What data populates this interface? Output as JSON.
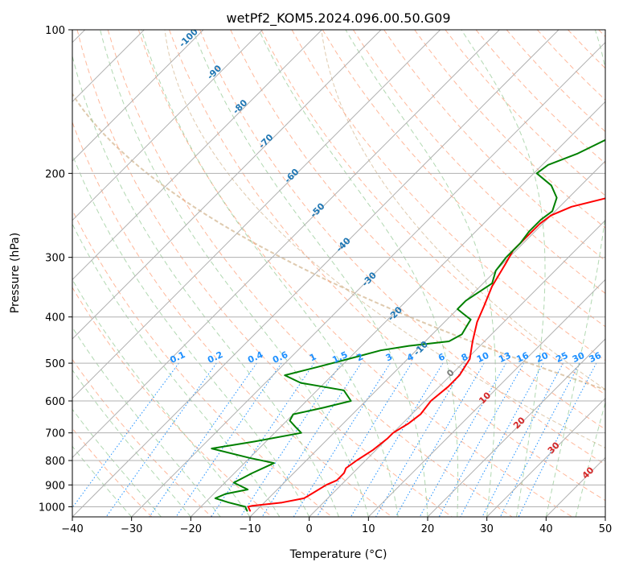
{
  "chart_data": {
    "type": "line",
    "title": "wetPf2_KOM5.2024.096.00.50.G09",
    "xlabel": "Temperature (°C)",
    "ylabel": "Pressure (hPa)",
    "xlim": [
      -40,
      50
    ],
    "ylim": [
      1050,
      100
    ],
    "y_scale": "log",
    "grid": true,
    "x_ticks": [
      -40,
      -30,
      -20,
      -10,
      0,
      10,
      20,
      30,
      40,
      50
    ],
    "y_ticks": [
      100,
      200,
      300,
      400,
      500,
      600,
      700,
      800,
      900,
      1000
    ],
    "series": [
      {
        "color": "#ff0000",
        "points": [
          [
            -11,
            1020
          ],
          [
            -12,
            1000
          ],
          [
            -11.5,
            995
          ],
          [
            -7,
            980
          ],
          [
            -4,
            960
          ],
          [
            -3.5,
            940
          ],
          [
            -2.5,
            900
          ],
          [
            -1.5,
            880
          ],
          [
            -1.5,
            850
          ],
          [
            -2,
            830
          ],
          [
            -1.5,
            800
          ],
          [
            -0.5,
            760
          ],
          [
            0,
            720
          ],
          [
            0,
            700
          ],
          [
            1,
            670
          ],
          [
            1.5,
            640
          ],
          [
            1,
            600
          ],
          [
            1.5,
            560
          ],
          [
            1.5,
            530
          ],
          [
            0.5,
            490
          ],
          [
            -2,
            450
          ],
          [
            -4.5,
            410
          ],
          [
            -6,
            380
          ],
          [
            -8,
            345
          ],
          [
            -9.5,
            310
          ],
          [
            -10.5,
            290
          ],
          [
            -10.5,
            270
          ],
          [
            -10.5,
            255
          ],
          [
            -10,
            245
          ],
          [
            -8,
            235
          ],
          [
            -2,
            222
          ],
          [
            5,
            212
          ],
          [
            10.5,
            203
          ],
          [
            13.5,
            195
          ],
          [
            15.5,
            185
          ],
          [
            17,
            175
          ],
          [
            19,
            165
          ],
          [
            21,
            155
          ],
          [
            24,
            140
          ],
          [
            27,
            125
          ],
          [
            28.5,
            115
          ],
          [
            29.5,
            108
          ],
          [
            30.5,
            100
          ]
        ]
      },
      {
        "color": "#008000",
        "points": [
          [
            -11.5,
            1020
          ],
          [
            -12.5,
            1000
          ],
          [
            -16,
            980
          ],
          [
            -19,
            960
          ],
          [
            -18,
            940
          ],
          [
            -15,
            920
          ],
          [
            -18.5,
            890
          ],
          [
            -17,
            850
          ],
          [
            -15,
            810
          ],
          [
            -20,
            790
          ],
          [
            -28,
            755
          ],
          [
            -22,
            730
          ],
          [
            -15.5,
            700
          ],
          [
            -17.5,
            680
          ],
          [
            -19.5,
            660
          ],
          [
            -20,
            640
          ],
          [
            -16,
            620
          ],
          [
            -12.5,
            600
          ],
          [
            -15.5,
            570
          ],
          [
            -24,
            550
          ],
          [
            -28,
            530
          ],
          [
            -24,
            510
          ],
          [
            -20,
            490
          ],
          [
            -16,
            470
          ],
          [
            -12,
            460
          ],
          [
            -6,
            450
          ],
          [
            -5,
            435
          ],
          [
            -5.5,
            420
          ],
          [
            -6,
            405
          ],
          [
            -8,
            395
          ],
          [
            -10,
            385
          ],
          [
            -10,
            370
          ],
          [
            -9,
            350
          ],
          [
            -8.5,
            340
          ],
          [
            -10,
            320
          ],
          [
            -10.5,
            300
          ],
          [
            -10.5,
            280
          ],
          [
            -11,
            265
          ],
          [
            -11,
            250
          ],
          [
            -10.5,
            240
          ],
          [
            -12,
            225
          ],
          [
            -15,
            212
          ],
          [
            -19.5,
            200
          ],
          [
            -19,
            192
          ],
          [
            -16,
            182
          ],
          [
            -13.5,
            170
          ],
          [
            -11.5,
            155
          ],
          [
            -10,
            140
          ],
          [
            -7,
            130
          ],
          [
            -4,
            120
          ],
          [
            0,
            110
          ],
          [
            3,
            100
          ]
        ]
      }
    ],
    "mixing_ratio_labels": [
      "0.1",
      "0.2",
      "0.4",
      "0.6",
      "1",
      "1.5",
      "2",
      "3",
      "4",
      "6",
      "8",
      "10",
      "13",
      "16",
      "20",
      "25",
      "30",
      "36"
    ],
    "mixing_ratio_values": [
      0.1,
      0.2,
      0.4,
      0.6,
      1,
      1.5,
      2,
      3,
      4,
      6,
      8,
      10,
      13,
      16,
      20,
      25,
      30,
      36
    ],
    "moist_adiabat_labels": [
      "-100",
      "-90",
      "-80",
      "-70",
      "-60",
      "-50",
      "-40",
      "-30",
      "-20",
      "-10"
    ],
    "moist_adiabat_values": [
      -100,
      -90,
      -80,
      -70,
      -60,
      -50,
      -40,
      -30,
      -20,
      -10
    ],
    "theta_labels": [
      "0",
      "10",
      "20",
      "30",
      "40"
    ],
    "theta_values": [
      0,
      10,
      20,
      30,
      40
    ],
    "colors": {
      "temperature": "#ff0000",
      "dewpoint": "#008000",
      "isotherm": "#b0b0b0",
      "grid": "#b0b0b0",
      "dry_adiabat": "#ffa07a",
      "moist_adiabat": "#90c890",
      "mixing_ratio": "#1e90ff",
      "moist_label": "#1f77b4",
      "theta_label": "#d62728",
      "zero_label": "#7f7f7f",
      "curve": "#d2b48c"
    }
  }
}
